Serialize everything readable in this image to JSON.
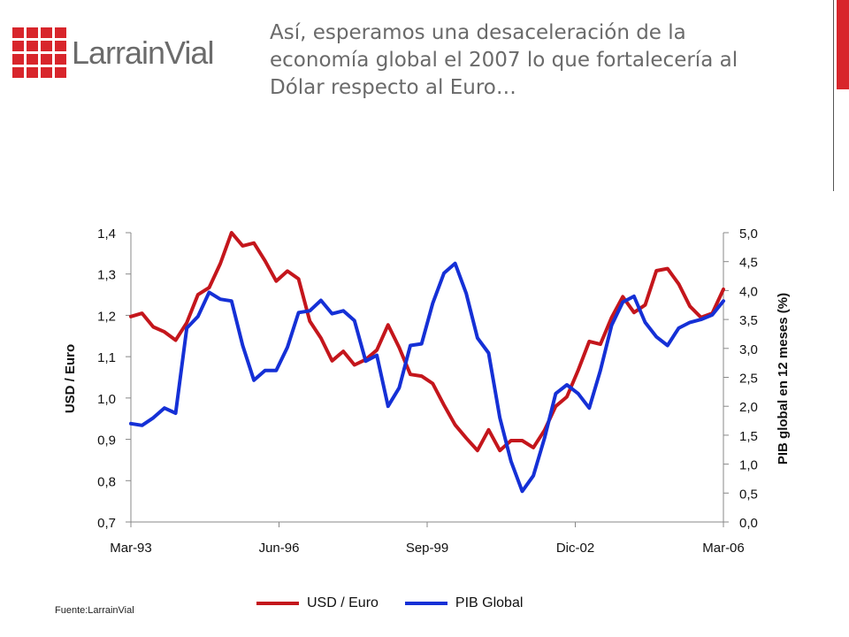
{
  "header": {
    "logo_text": "LarrainVial",
    "headline_lines": [
      "Así, esperamos una desaceleración de la",
      "economía global el 2007 lo que fortalecería al",
      "Dólar respecto al Euro…"
    ]
  },
  "colors": {
    "brand_red": "#d8252b",
    "usd_euro": "#c4161c",
    "pib_global": "#1530d6"
  },
  "chart_data": {
    "type": "line",
    "x_ticks": [
      "Mar-93",
      "Jun-96",
      "Sep-99",
      "Dic-02",
      "Mar-06"
    ],
    "x_range": [
      "1993-03",
      "2006-06"
    ],
    "ylabel_left": "USD / Euro",
    "ylabel_right": "PIB global en 12 meses (%)",
    "ylim_left": [
      0.7,
      1.4
    ],
    "ylim_right": [
      0.0,
      5.0
    ],
    "y_ticks_left": [
      "0,7",
      "0,8",
      "0,9",
      "1,0",
      "1,1",
      "1,2",
      "1,3",
      "1,4"
    ],
    "y_ticks_right": [
      "0,0",
      "0,5",
      "1,0",
      "1,5",
      "2,0",
      "2,5",
      "3,0",
      "3,5",
      "4,0",
      "4,5",
      "5,0"
    ],
    "grid": false,
    "legend_position": "bottom",
    "series": [
      {
        "name": "USD / Euro",
        "axis": "left",
        "points": [
          [
            "1993-03",
            1.197
          ],
          [
            "1993-06",
            1.205
          ],
          [
            "1993-09",
            1.172
          ],
          [
            "1993-12",
            1.16
          ],
          [
            "1994-03",
            1.14
          ],
          [
            "1994-06",
            1.182
          ],
          [
            "1994-09",
            1.25
          ],
          [
            "1994-12",
            1.267
          ],
          [
            "1995-03",
            1.325
          ],
          [
            "1995-06",
            1.4
          ],
          [
            "1995-09",
            1.368
          ],
          [
            "1995-12",
            1.375
          ],
          [
            "1996-03",
            1.332
          ],
          [
            "1996-06",
            1.283
          ],
          [
            "1996-09",
            1.307
          ],
          [
            "1996-12",
            1.288
          ],
          [
            "1997-03",
            1.186
          ],
          [
            "1997-06",
            1.145
          ],
          [
            "1997-09",
            1.09
          ],
          [
            "1997-12",
            1.113
          ],
          [
            "1998-03",
            1.08
          ],
          [
            "1998-06",
            1.093
          ],
          [
            "1998-09",
            1.116
          ],
          [
            "1998-12",
            1.177
          ],
          [
            "1999-03",
            1.122
          ],
          [
            "1999-06",
            1.057
          ],
          [
            "1999-09",
            1.053
          ],
          [
            "1999-12",
            1.035
          ],
          [
            "2000-03",
            0.983
          ],
          [
            "2000-06",
            0.935
          ],
          [
            "2000-09",
            0.903
          ],
          [
            "2000-12",
            0.873
          ],
          [
            "2001-03",
            0.923
          ],
          [
            "2001-06",
            0.873
          ],
          [
            "2001-09",
            0.897
          ],
          [
            "2001-12",
            0.897
          ],
          [
            "2002-03",
            0.88
          ],
          [
            "2002-06",
            0.922
          ],
          [
            "2002-09",
            0.98
          ],
          [
            "2002-12",
            1.003
          ],
          [
            "2003-03",
            1.067
          ],
          [
            "2003-06",
            1.137
          ],
          [
            "2003-09",
            1.13
          ],
          [
            "2003-12",
            1.195
          ],
          [
            "2004-03",
            1.245
          ],
          [
            "2004-06",
            1.207
          ],
          [
            "2004-09",
            1.225
          ],
          [
            "2004-12",
            1.308
          ],
          [
            "2005-03",
            1.313
          ],
          [
            "2005-06",
            1.276
          ],
          [
            "2005-09",
            1.222
          ],
          [
            "2005-12",
            1.195
          ],
          [
            "2006-03",
            1.205
          ],
          [
            "2006-06",
            1.263
          ]
        ]
      },
      {
        "name": "PIB Global",
        "axis": "right",
        "points": [
          [
            "1993-03",
            1.7
          ],
          [
            "1993-06",
            1.67
          ],
          [
            "1993-09",
            1.8
          ],
          [
            "1993-12",
            1.97
          ],
          [
            "1994-03",
            1.88
          ],
          [
            "1994-06",
            3.35
          ],
          [
            "1994-09",
            3.55
          ],
          [
            "1994-12",
            3.97
          ],
          [
            "1995-03",
            3.85
          ],
          [
            "1995-06",
            3.82
          ],
          [
            "1995-09",
            3.05
          ],
          [
            "1995-12",
            2.45
          ],
          [
            "1996-03",
            2.62
          ],
          [
            "1996-06",
            2.62
          ],
          [
            "1996-09",
            3.02
          ],
          [
            "1996-12",
            3.62
          ],
          [
            "1997-03",
            3.65
          ],
          [
            "1997-06",
            3.83
          ],
          [
            "1997-09",
            3.6
          ],
          [
            "1997-12",
            3.65
          ],
          [
            "1998-03",
            3.48
          ],
          [
            "1998-06",
            2.78
          ],
          [
            "1998-09",
            2.88
          ],
          [
            "1998-12",
            2.0
          ],
          [
            "1999-03",
            2.32
          ],
          [
            "1999-06",
            3.05
          ],
          [
            "1999-09",
            3.08
          ],
          [
            "1999-12",
            3.78
          ],
          [
            "2000-03",
            4.3
          ],
          [
            "2000-06",
            4.47
          ],
          [
            "2000-09",
            3.95
          ],
          [
            "2000-12",
            3.18
          ],
          [
            "2001-03",
            2.92
          ],
          [
            "2001-06",
            1.8
          ],
          [
            "2001-09",
            1.05
          ],
          [
            "2001-12",
            0.53
          ],
          [
            "2002-03",
            0.8
          ],
          [
            "2002-06",
            1.45
          ],
          [
            "2002-09",
            2.22
          ],
          [
            "2002-12",
            2.37
          ],
          [
            "2003-03",
            2.22
          ],
          [
            "2003-06",
            1.97
          ],
          [
            "2003-09",
            2.62
          ],
          [
            "2003-12",
            3.4
          ],
          [
            "2004-03",
            3.8
          ],
          [
            "2004-06",
            3.9
          ],
          [
            "2004-09",
            3.45
          ],
          [
            "2004-12",
            3.2
          ],
          [
            "2005-03",
            3.05
          ],
          [
            "2005-06",
            3.35
          ],
          [
            "2005-09",
            3.45
          ],
          [
            "2005-12",
            3.5
          ],
          [
            "2006-03",
            3.58
          ],
          [
            "2006-06",
            3.82
          ]
        ]
      }
    ]
  },
  "legend": {
    "items": [
      "USD / Euro",
      "PIB Global"
    ]
  },
  "footnote": "Fuente:LarrainVial"
}
